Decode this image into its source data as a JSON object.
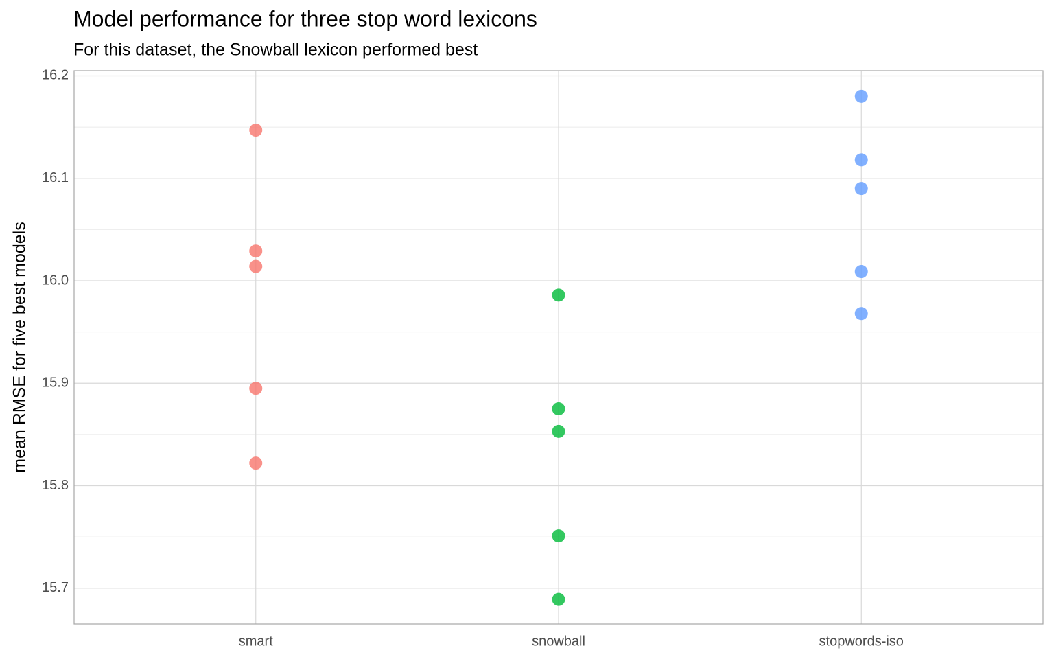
{
  "chart_data": {
    "type": "strip",
    "title": "Model performance for three stop word lexicons",
    "subtitle": "For this dataset, the Snowball lexicon performed best",
    "y_label": "mean RMSE for five best models",
    "categories": [
      "smart",
      "snowball",
      "stopwords-iso"
    ],
    "colors": [
      "#F8766D",
      "#00BA38",
      "#619CFF"
    ],
    "values": [
      [
        16.147,
        16.029,
        16.014,
        15.895,
        15.822
      ],
      [
        15.986,
        15.875,
        15.853,
        15.751,
        15.689
      ],
      [
        16.18,
        16.118,
        16.09,
        16.009,
        15.968
      ]
    ],
    "ylim": [
      15.665,
      16.205
    ],
    "yticks": [
      {
        "value": 15.7,
        "label": "15.7"
      },
      {
        "value": 15.8,
        "label": "15.8"
      },
      {
        "value": 15.9,
        "label": "15.9"
      },
      {
        "value": 16.0,
        "label": "16.0"
      },
      {
        "value": 16.1,
        "label": "16.1"
      },
      {
        "value": 16.2,
        "label": "16.2"
      }
    ],
    "grid": true,
    "minor_grid": true
  }
}
